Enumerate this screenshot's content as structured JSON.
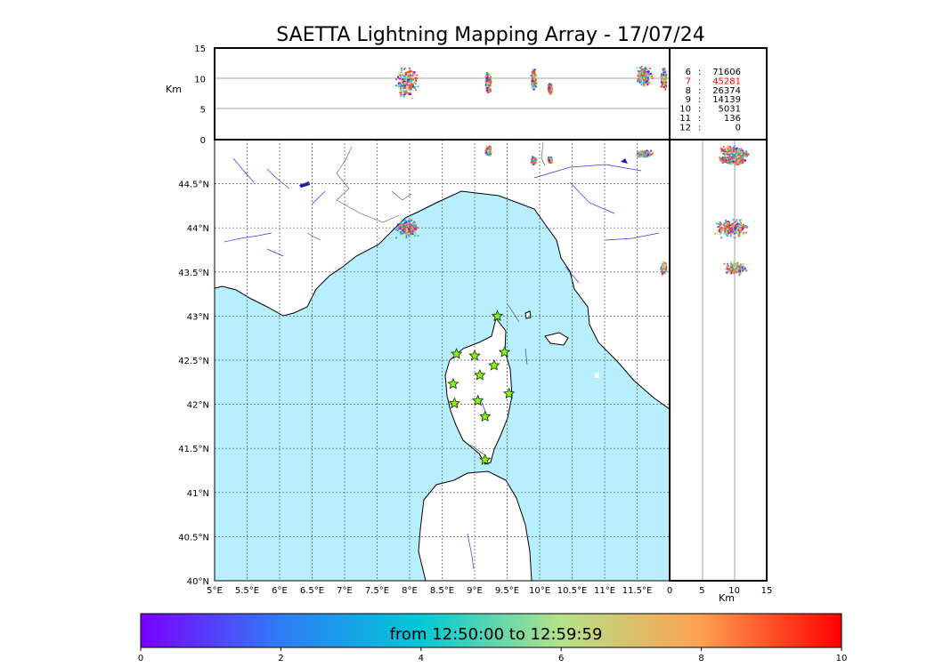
{
  "title": "SAETTA Lightning Mapping Array - 17/07/24",
  "axes": {
    "map_lon_ticks": [
      "5°E",
      "5.5°E",
      "6°E",
      "6.5°E",
      "7°E",
      "7.5°E",
      "8°E",
      "8.5°E",
      "9°E",
      "9.5°E",
      "10°E",
      "10.5°E",
      "11°E",
      "11.5°E"
    ],
    "map_lat_ticks": [
      "44.5°N",
      "44°N",
      "43.5°N",
      "43°N",
      "42.5°N",
      "42°N",
      "41.5°N",
      "41°N",
      "40.5°N",
      "40°N"
    ],
    "alt_ticks": [
      "15",
      "10",
      "5",
      "0"
    ],
    "alt_label": "Km",
    "side_ticks": [
      "0",
      "5",
      "10",
      "15"
    ],
    "side_label": "Km"
  },
  "stats": [
    {
      "level": "6",
      "count": "71606",
      "color": "#000000"
    },
    {
      "level": "7",
      "count": "45281",
      "color": "#ff0000"
    },
    {
      "level": "8",
      "count": "26374",
      "color": "#000000"
    },
    {
      "level": "9",
      "count": "14139",
      "color": "#000000"
    },
    {
      "level": "10",
      "count": "5031",
      "color": "#000000"
    },
    {
      "level": "11",
      "count": "136",
      "color": "#000000"
    },
    {
      "level": "12",
      "count": "0",
      "color": "#000000"
    }
  ],
  "colorbar": {
    "label": "from 12:50:00 to 12:59:59",
    "ticks": [
      "0",
      "2",
      "4",
      "6",
      "8",
      "10"
    ],
    "stops": [
      "#7a00ff",
      "#2f7cf6",
      "#00c8d6",
      "#b5e28a",
      "#ffa050",
      "#ff0000"
    ]
  },
  "colors": {
    "sea": "#b8efff",
    "land": "#ffffff",
    "rivers": "#3434ff",
    "sources": "#ff4a1e",
    "stations": "#7fff00"
  },
  "chart_data": {
    "type": "scatter",
    "xlim": [
      5,
      12
    ],
    "ylim": [
      40,
      45
    ],
    "alt_range": [
      0,
      15
    ],
    "stations": [
      {
        "lon": 9.35,
        "lat": 43.0
      },
      {
        "lon": 8.72,
        "lat": 42.57
      },
      {
        "lon": 9.0,
        "lat": 42.55
      },
      {
        "lon": 9.46,
        "lat": 42.59
      },
      {
        "lon": 9.3,
        "lat": 42.44
      },
      {
        "lon": 9.08,
        "lat": 42.33
      },
      {
        "lon": 8.67,
        "lat": 42.23
      },
      {
        "lon": 9.53,
        "lat": 42.12
      },
      {
        "lon": 9.05,
        "lat": 42.04
      },
      {
        "lon": 8.69,
        "lat": 42.01
      },
      {
        "lon": 9.16,
        "lat": 41.86
      },
      {
        "lon": 9.16,
        "lat": 41.37
      }
    ],
    "source_clusters": [
      {
        "name": "",
        "lon": 7.95,
        "lat": 44.0,
        "lon_spread": 0.2,
        "lat_spread": 0.12,
        "alt": 9.5,
        "alt_spread": 3
      },
      {
        "name": "",
        "lon": 9.2,
        "lat": 44.88,
        "lon_spread": 0.06,
        "lat_spread": 0.06,
        "alt": 9.5,
        "alt_spread": 2
      },
      {
        "name": "",
        "lon": 9.9,
        "lat": 44.77,
        "lon_spread": 0.05,
        "lat_spread": 0.05,
        "alt": 10,
        "alt_spread": 2
      },
      {
        "name": "",
        "lon": 10.15,
        "lat": 44.78,
        "lon_spread": 0.04,
        "lat_spread": 0.04,
        "alt": 8.5,
        "alt_spread": 1
      },
      {
        "name": "",
        "lon": 11.6,
        "lat": 44.85,
        "lon_spread": 0.15,
        "lat_spread": 0.05,
        "alt": 10.5,
        "alt_spread": 2
      },
      {
        "name": "",
        "lon": 11.9,
        "lat": 43.55,
        "lon_spread": 0.05,
        "lat_spread": 0.08,
        "alt": 10,
        "alt_spread": 2
      }
    ]
  }
}
